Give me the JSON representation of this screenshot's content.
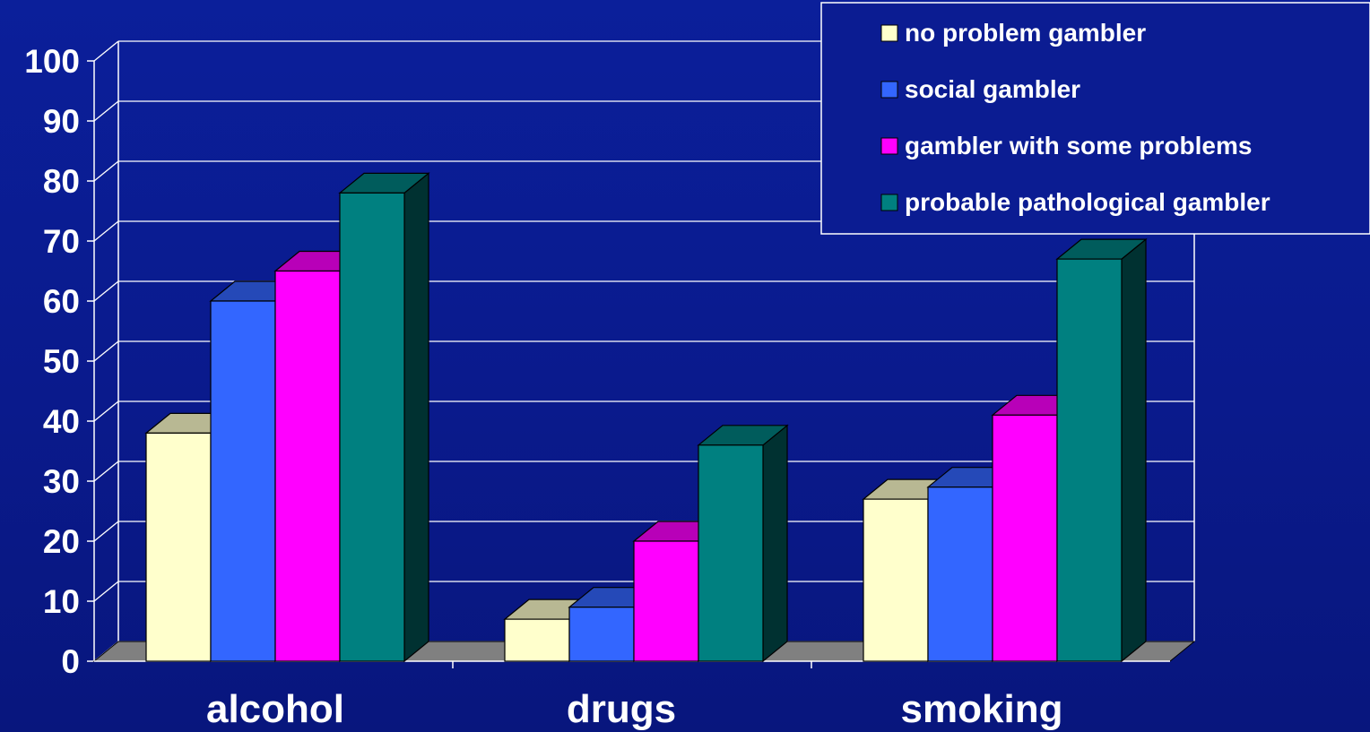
{
  "chart_data": {
    "type": "bar",
    "title": "",
    "xlabel": "",
    "ylabel": "",
    "ylim": [
      0,
      100
    ],
    "yticks": [
      0,
      10,
      20,
      30,
      40,
      50,
      60,
      70,
      80,
      90,
      100
    ],
    "grid": true,
    "legend_position": "top-right",
    "categories": [
      "alcohol",
      "drugs",
      "smoking"
    ],
    "series": [
      {
        "name": "no problem gambler",
        "values": [
          38,
          7,
          27
        ],
        "color": "#ffffcc"
      },
      {
        "name": "social gambler",
        "values": [
          60,
          9,
          29
        ],
        "color": "#3366ff"
      },
      {
        "name": "gambler with some problems",
        "values": [
          65,
          20,
          41
        ],
        "color": "#ff00ff"
      },
      {
        "name": "probable pathological gambler",
        "values": [
          78,
          36,
          67
        ],
        "color": "#008080"
      }
    ]
  },
  "colors": {
    "background": "#0a1a8c",
    "grid": "#ffffff",
    "floor": "#808080",
    "text": "#ffffff"
  }
}
